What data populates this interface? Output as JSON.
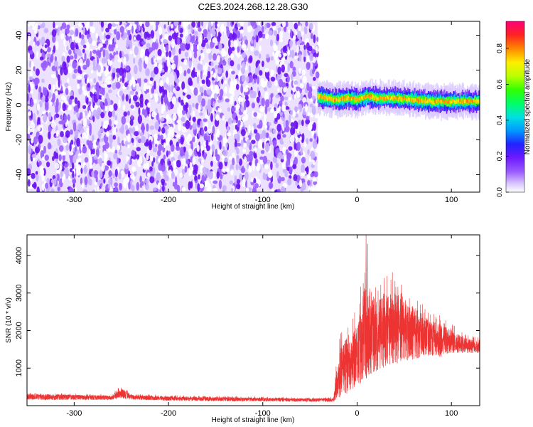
{
  "title": "C2E3.2024.268.12.28.G30",
  "chart_data": [
    {
      "type": "heatmap",
      "xlabel": "Height of straight line (km)",
      "ylabel": "Frequency (Hz)",
      "xlim": [
        -350,
        130
      ],
      "ylim": [
        -50,
        48
      ],
      "x_ticks": [
        -300,
        -200,
        -100,
        0,
        100
      ],
      "x_tick_labels": [
        "-300",
        "-200",
        "-100",
        "0",
        "100"
      ],
      "y_ticks": [
        -40,
        -20,
        0,
        20,
        40
      ],
      "y_tick_labels": [
        "-40",
        "-20",
        "0",
        "20",
        "40"
      ],
      "colorbar": {
        "label": "Normalized spectral amplitude",
        "range": [
          0,
          0.95
        ],
        "ticks": [
          0,
          0.2,
          0.4,
          0.6,
          0.8
        ],
        "tick_labels": [
          "0.0",
          "0.2",
          "0.4",
          "0.6",
          "0.8"
        ],
        "colormap": "rainbow"
      },
      "regions": [
        {
          "x": [
            -350,
            -42
          ],
          "freq": [
            -50,
            48
          ],
          "description": "broadband noise",
          "amplitude": [
            0.05,
            0.2
          ]
        },
        {
          "x": [
            -42,
            130
          ],
          "center_freq": [
            [
              -42,
              5
            ],
            [
              -35,
              4
            ],
            [
              -20,
              3
            ],
            [
              -10,
              4
            ],
            [
              0,
              3
            ],
            [
              10,
              5
            ],
            [
              20,
              4
            ],
            [
              40,
              4
            ],
            [
              60,
              3
            ],
            [
              80,
              2
            ],
            [
              100,
              2
            ],
            [
              130,
              2
            ]
          ],
          "bandwidth": 5,
          "amplitude": [
            0.3,
            0.9
          ]
        }
      ],
      "grid": false
    },
    {
      "type": "line",
      "xlabel": "Height of straight line (km)",
      "ylabel": "SNR (10 * v/v)",
      "xlim": [
        -350,
        130
      ],
      "ylim": [
        0,
        4550
      ],
      "x_ticks": [
        -300,
        -200,
        -100,
        0,
        100
      ],
      "x_tick_labels": [
        "-300",
        "-200",
        "-100",
        "0",
        "100"
      ],
      "y_ticks": [
        1000,
        2000,
        3000,
        4000
      ],
      "y_tick_labels": [
        "1000",
        "2000",
        "3000",
        "4000"
      ],
      "series": [
        {
          "color": "#ee3333",
          "envelope": {
            "x": [
              -350,
              -300,
              -260,
              -250,
              -240,
              -200,
              -150,
              -100,
              -50,
              -25,
              -20,
              -10,
              0,
              10,
              20,
              30,
              40,
              50,
              60,
              70,
              80,
              90,
              100,
              110,
              120,
              130
            ],
            "min": [
              150,
              150,
              150,
              200,
              160,
              130,
              120,
              110,
              100,
              100,
              200,
              300,
              500,
              700,
              900,
              1000,
              1100,
              1200,
              1200,
              1300,
              1300,
              1300,
              1400,
              1400,
              1400,
              1400
            ],
            "max": [
              350,
              330,
              300,
              600,
              320,
              280,
              260,
              240,
              220,
              240,
              1800,
              2400,
              2600,
              4500,
              3300,
              3500,
              3600,
              3300,
              3000,
              2700,
              2500,
              2400,
              2200,
              2000,
              1900,
              1800
            ],
            "typical": [
              250,
              240,
              220,
              350,
              230,
              200,
              180,
              170,
              160,
              160,
              800,
              1100,
              1400,
              1800,
              2000,
              2200,
              2300,
              2200,
              2100,
              2000,
              1900,
              1800,
              1700,
              1650,
              1600,
              1550
            ]
          }
        }
      ],
      "grid": false
    }
  ]
}
